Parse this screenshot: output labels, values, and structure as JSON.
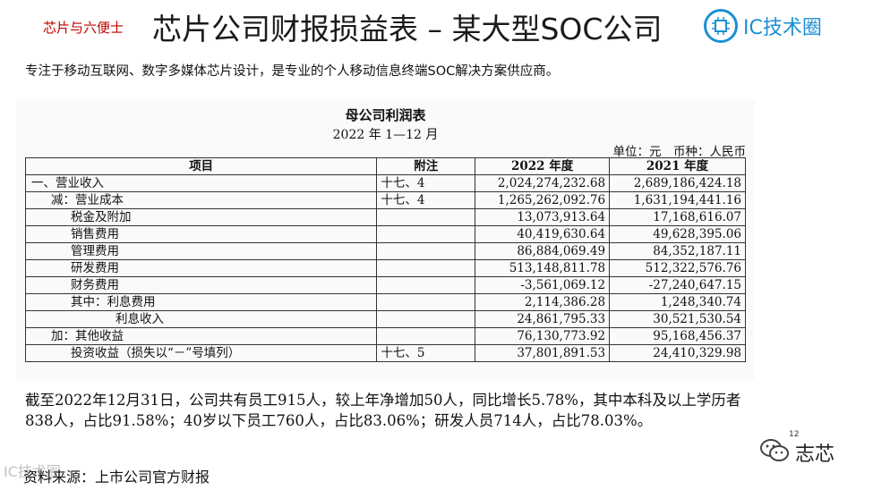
{
  "header": {
    "tag": "芯片与六便士",
    "title": "芯片公司财报损益表 – 某大型SOC公司",
    "logo_text": "IC技术圈"
  },
  "subtitle": "专注于移动互联网、数字多媒体芯片设计，是专业的个人移动信息终端SOC解决方案供应商。",
  "document": {
    "title": "母公司利润表",
    "date": "2022 年 1—12 月",
    "unit": "单位：元　币种：人民币",
    "columns": [
      "项目",
      "附注",
      "2022 年度",
      "2021 年度"
    ],
    "rows": [
      {
        "item": "一、营业收入",
        "note": "十七、4",
        "y2022": "2,024,274,232.68",
        "y2021": "2,689,186,424.18",
        "indent": 0
      },
      {
        "item": "减：营业成本",
        "note": "十七、4",
        "y2022": "1,265,262,092.76",
        "y2021": "1,631,194,441.16",
        "indent": 1
      },
      {
        "item": "税金及附加",
        "note": "",
        "y2022": "13,073,913.64",
        "y2021": "17,168,616.07",
        "indent": 2
      },
      {
        "item": "销售费用",
        "note": "",
        "y2022": "40,419,630.64",
        "y2021": "49,628,395.06",
        "indent": 2
      },
      {
        "item": "管理费用",
        "note": "",
        "y2022": "86,884,069.49",
        "y2021": "84,352,187.11",
        "indent": 2
      },
      {
        "item": "研发费用",
        "note": "",
        "y2022": "513,148,811.78",
        "y2021": "512,322,576.76",
        "indent": 2
      },
      {
        "item": "财务费用",
        "note": "",
        "y2022": "-3,561,069.12",
        "y2021": "-27,240,647.15",
        "indent": 2
      },
      {
        "item": "其中：利息费用",
        "note": "",
        "y2022": "2,114,386.28",
        "y2021": "1,248,340.74",
        "indent": 2
      },
      {
        "item": "利息收入",
        "note": "",
        "y2022": "24,861,795.33",
        "y2021": "30,521,530.54",
        "indent": 3
      },
      {
        "item": "加：其他收益",
        "note": "",
        "y2022": "76,130,773.92",
        "y2021": "95,168,456.37",
        "indent": 1
      },
      {
        "item": "投资收益（损失以“－”号填列）",
        "note": "十七、5",
        "y2022": "37,801,891.53",
        "y2021": "24,410,329.98",
        "indent": 2
      }
    ]
  },
  "summary": "截至2022年12月31日，公司共有员工915人，较上年净增加50人，同比增长5.78%，其中本科及以上学历者838人，占比91.58%；40岁以下员工760人，占比83.06%；研发人员714人，占比78.03%。",
  "source": "资料来源：上市公司官方财报",
  "watermark": "IC技术圈",
  "page_number": "12",
  "wechat": {
    "name": "志芯"
  }
}
